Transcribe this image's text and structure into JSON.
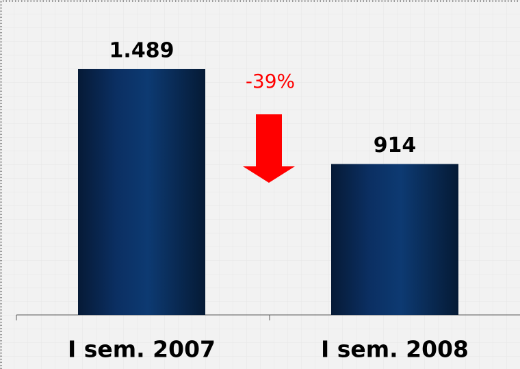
{
  "chart_data": {
    "type": "bar",
    "categories": [
      "I sem. 2007",
      "I sem. 2008"
    ],
    "values": [
      1489,
      914
    ],
    "value_labels": [
      "1.489",
      "914"
    ],
    "color": "#0a2d5c",
    "ylim": [
      0,
      1800
    ],
    "annotations": [
      "-39%"
    ]
  }
}
